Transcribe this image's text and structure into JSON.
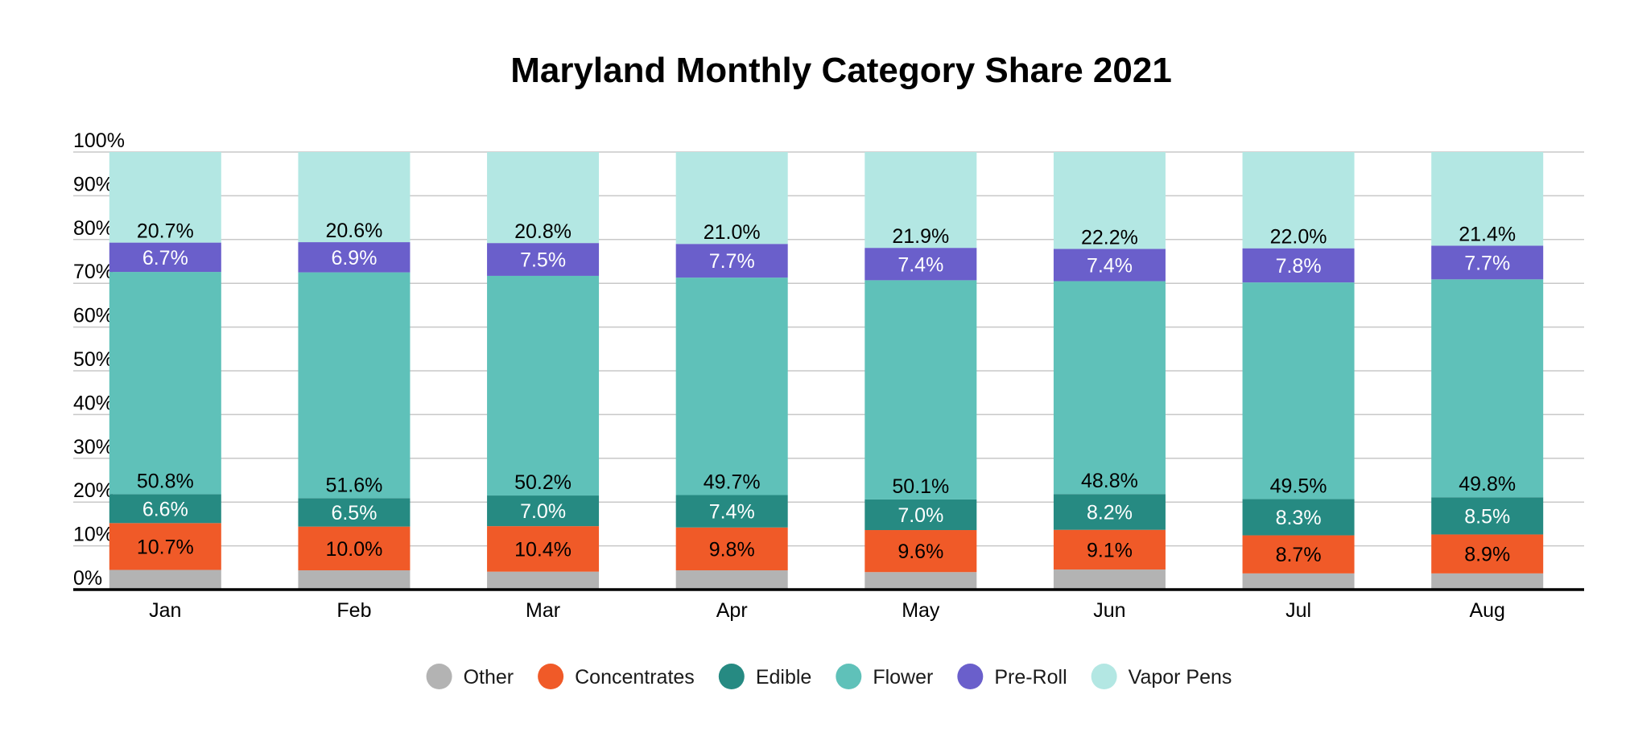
{
  "chart_data": {
    "type": "bar",
    "stacked": true,
    "title": "Maryland Monthly Category Share 2021",
    "xlabel": "",
    "ylabel": "",
    "ylim": [
      0,
      100
    ],
    "y_ticks": [
      "0%",
      "10%",
      "20%",
      "30%",
      "40%",
      "50%",
      "60%",
      "70%",
      "80%",
      "90%",
      "100%"
    ],
    "grid": true,
    "legend_position": "bottom",
    "categories": [
      "Jan",
      "Feb",
      "Mar",
      "Apr",
      "May",
      "Jun",
      "Jul",
      "Aug"
    ],
    "series": [
      {
        "name": "Other",
        "color": "#b3b3b3",
        "label_color": "#000000",
        "values": [
          4.5,
          4.4,
          4.1,
          4.4,
          4.0,
          4.6,
          3.7,
          3.7
        ],
        "labels": [
          null,
          null,
          null,
          null,
          null,
          null,
          null,
          null
        ]
      },
      {
        "name": "Concentrates",
        "color": "#f05a28",
        "label_color": "#000000",
        "values": [
          10.7,
          10.0,
          10.4,
          9.8,
          9.6,
          9.1,
          8.7,
          8.9
        ],
        "labels": [
          "10.7%",
          "10.0%",
          "10.4%",
          "9.8%",
          "9.6%",
          "9.1%",
          "8.7%",
          "8.9%"
        ]
      },
      {
        "name": "Edible",
        "color": "#268a82",
        "label_color": "#ffffff",
        "values": [
          6.6,
          6.5,
          7.0,
          7.4,
          7.0,
          8.2,
          8.3,
          8.5
        ],
        "labels": [
          "6.6%",
          "6.5%",
          "7.0%",
          "7.4%",
          "7.0%",
          "8.2%",
          "8.3%",
          "8.5%"
        ]
      },
      {
        "name": "Flower",
        "color": "#5fc1b9",
        "label_color": "#000000",
        "values": [
          50.8,
          51.6,
          50.2,
          49.7,
          50.1,
          48.8,
          49.5,
          49.8
        ],
        "labels": [
          "50.8%",
          "51.6%",
          "50.2%",
          "49.7%",
          "50.1%",
          "48.8%",
          "49.5%",
          "49.8%"
        ]
      },
      {
        "name": "Pre-Roll",
        "color": "#6a5fcb",
        "label_color": "#ffffff",
        "values": [
          6.7,
          6.9,
          7.5,
          7.7,
          7.4,
          7.4,
          7.8,
          7.7
        ],
        "labels": [
          "6.7%",
          "6.9%",
          "7.5%",
          "7.7%",
          "7.4%",
          "7.4%",
          "7.8%",
          "7.7%"
        ]
      },
      {
        "name": "Vapor Pens",
        "color": "#b3e7e3",
        "label_color": "#000000",
        "values": [
          20.7,
          20.6,
          20.8,
          21.0,
          21.9,
          22.2,
          22.0,
          21.4
        ],
        "labels": [
          "20.7%",
          "20.6%",
          "20.8%",
          "21.0%",
          "21.9%",
          "22.2%",
          "22.0%",
          "21.4%"
        ]
      }
    ]
  }
}
